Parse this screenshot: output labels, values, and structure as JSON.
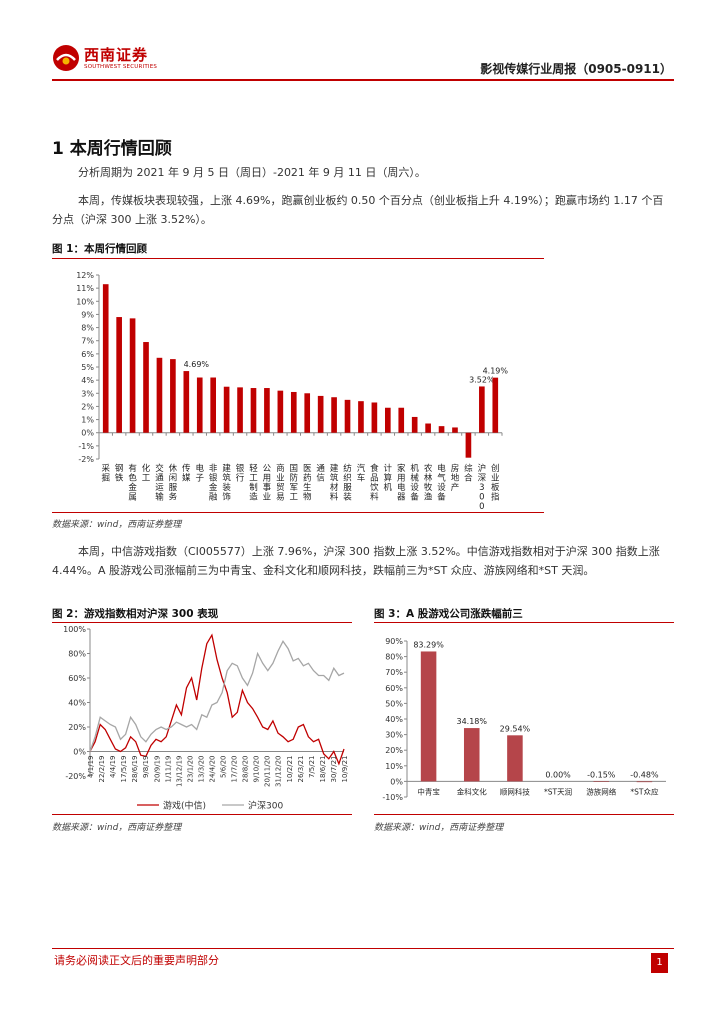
{
  "header": {
    "logo_cn": "西南证券",
    "logo_en": "SOUTHWEST SECURITIES",
    "report_title": "影视传媒行业周报（0905-0911）"
  },
  "section": {
    "heading": "1 本周行情回顾",
    "para1": "分析周期为 2021 年 9 月 5 日（周日）-2021 年 9 月 11 日（周六）。",
    "para2": "本周，传媒板块表现较强，上涨 4.69%，跑赢创业板约 0.50 个百分点（创业板指上升 4.19%）；跑赢市场约 1.17 个百分点（沪深 300 上涨 3.52%）。",
    "para3": "本周，中信游戏指数（CI005577）上涨 7.96%，沪深 300 指数上涨 3.52%。中信游戏指数相对于沪深 300 指数上涨 4.44%。A 股游戏公司涨幅前三为中青宝、金科文化和顺网科技，跌幅前三为*ST 众应、游族网络和*ST 天润。"
  },
  "figures": {
    "fig1_title": "图 1：本周行情回顾",
    "fig1_source": "数据来源：wind，西南证券整理",
    "fig2_title": "图 2：游戏指数相对沪深 300 表现",
    "fig2_source": "数据来源：wind，西南证券整理",
    "fig3_title": "图 3：A 股游戏公司涨跌幅前三",
    "fig3_source": "数据来源：wind，西南证券整理"
  },
  "colors": {
    "accent": "#c00000",
    "bar": "#c00000",
    "bar3": "#b5454a",
    "line_game": "#c00000",
    "line_hs300": "#a6a6a6"
  },
  "chart_data": [
    {
      "type": "bar",
      "id": "fig1",
      "categories": [
        "采掘",
        "钢铁",
        "有色金属",
        "化工",
        "交通运输",
        "休闲服务",
        "传媒",
        "电子",
        "非银金融",
        "建筑装饰",
        "银行",
        "轻工制造",
        "公用事业",
        "商业贸易",
        "国防军工",
        "医药生物",
        "通信",
        "建筑材料",
        "纺织服装",
        "汽车",
        "食品饮料",
        "计算机",
        "家用电器",
        "机械设备",
        "农林牧渔",
        "电气设备",
        "房地产",
        "综合",
        "沪深300",
        "创业板指"
      ],
      "values": [
        11.3,
        8.8,
        8.7,
        6.9,
        5.7,
        5.6,
        4.69,
        4.2,
        4.2,
        3.5,
        3.45,
        3.4,
        3.4,
        3.2,
        3.1,
        3.0,
        2.8,
        2.7,
        2.5,
        2.4,
        2.3,
        1.9,
        1.9,
        1.2,
        0.7,
        0.5,
        0.4,
        -1.9,
        3.52,
        4.19
      ],
      "data_labels": {
        "传媒": "4.69%",
        "沪深300": "3.52%",
        "创业板指": "4.19%"
      },
      "ylim": [
        -2,
        12
      ],
      "yticks": [
        "12%",
        "11%",
        "10%",
        "9%",
        "8%",
        "7%",
        "6%",
        "5%",
        "4%",
        "3%",
        "2%",
        "1%",
        "0%",
        "-1%",
        "-2%"
      ],
      "grid": false
    },
    {
      "type": "line",
      "id": "fig2",
      "x_ticks": [
        "4/1/19",
        "22/2/19",
        "4/4/19",
        "17/5/19",
        "28/6/19",
        "9/8/19",
        "20/9/19",
        "1/11/19",
        "13/12/19",
        "23/1/20",
        "13/3/20",
        "24/4/20",
        "5/6/20",
        "17/7/20",
        "28/8/20",
        "9/10/20",
        "20/11/20",
        "31/12/20",
        "10/2/21",
        "26/3/21",
        "7/5/21",
        "18/6/21",
        "30/7/21",
        "10/9/21"
      ],
      "ylim": [
        -20,
        100
      ],
      "yticks": [
        "100%",
        "80%",
        "60%",
        "40%",
        "20%",
        "0%",
        "-20%"
      ],
      "series": [
        {
          "name": "游戏(中信)",
          "values": [
            0,
            8,
            22,
            18,
            10,
            2,
            0,
            3,
            12,
            8,
            -3,
            -4,
            5,
            10,
            8,
            12,
            25,
            38,
            30,
            52,
            60,
            42,
            68,
            88,
            95,
            75,
            60,
            48,
            28,
            32,
            50,
            40,
            35,
            28,
            20,
            18,
            25,
            15,
            12,
            8,
            10,
            20,
            22,
            12,
            8,
            10,
            -2,
            -6,
            0,
            -10,
            2
          ]
        },
        {
          "name": "沪深300",
          "values": [
            0,
            12,
            28,
            25,
            22,
            20,
            10,
            14,
            28,
            22,
            12,
            8,
            14,
            18,
            20,
            18,
            20,
            24,
            22,
            20,
            22,
            18,
            30,
            28,
            38,
            40,
            48,
            66,
            72,
            70,
            60,
            54,
            64,
            80,
            72,
            66,
            72,
            82,
            90,
            84,
            74,
            76,
            70,
            72,
            66,
            62,
            62,
            58,
            68,
            62,
            64
          ]
        }
      ],
      "legend": "bottom"
    },
    {
      "type": "bar",
      "id": "fig3",
      "categories": [
        "中青宝",
        "金科文化",
        "顺网科技",
        "*ST天润",
        "游族网络",
        "*ST众应"
      ],
      "values": [
        83.29,
        34.18,
        29.54,
        0.0,
        -0.15,
        -0.48
      ],
      "data_labels": [
        "83.29%",
        "34.18%",
        "29.54%",
        "0.00%",
        "-0.15%",
        "-0.48%"
      ],
      "ylim": [
        -10,
        90
      ],
      "yticks": [
        "90%",
        "80%",
        "70%",
        "60%",
        "50%",
        "40%",
        "30%",
        "20%",
        "10%",
        "0%",
        "-10%"
      ]
    }
  ],
  "footer": {
    "note": "请务必阅读正文后的重要声明部分",
    "page": "1"
  }
}
